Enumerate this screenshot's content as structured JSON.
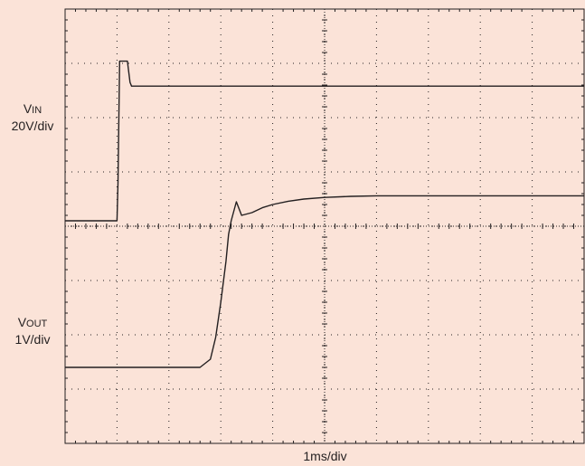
{
  "labels": {
    "vin_main": "V",
    "vin_sub": "IN",
    "vin_scale": "20V/div",
    "vout_main": "V",
    "vout_sub": "OUT",
    "vout_scale": "1V/div",
    "xlabel": "1ms/div"
  },
  "colors": {
    "background": "#fbe3d8",
    "grid": "#231f20",
    "trace": "#231f20"
  },
  "chart_data": {
    "type": "line",
    "title": "",
    "xlabel": "1ms/div",
    "x_divisions": 10,
    "y_divisions": 8,
    "xlim": [
      0,
      10
    ],
    "ylim": [
      0,
      8
    ],
    "grid": true,
    "series": [
      {
        "name": "VIN",
        "x": [
          0,
          1.0,
          1.02,
          1.05,
          1.2,
          1.25,
          1.28,
          10
        ],
        "y": [
          4.1,
          4.1,
          4.8,
          7.04,
          7.04,
          6.65,
          6.58,
          6.58
        ]
      },
      {
        "name": "VOUT",
        "x": [
          0,
          2.6,
          2.8,
          2.9,
          3.0,
          3.1,
          3.15,
          3.2,
          3.3,
          3.4,
          3.6,
          3.8,
          4.0,
          4.3,
          4.6,
          5.0,
          5.5,
          6.0,
          10
        ],
        "y": [
          1.4,
          1.4,
          1.55,
          1.95,
          2.6,
          3.35,
          3.85,
          4.1,
          4.45,
          4.2,
          4.25,
          4.34,
          4.4,
          4.46,
          4.5,
          4.53,
          4.55,
          4.56,
          4.56
        ]
      }
    ]
  }
}
